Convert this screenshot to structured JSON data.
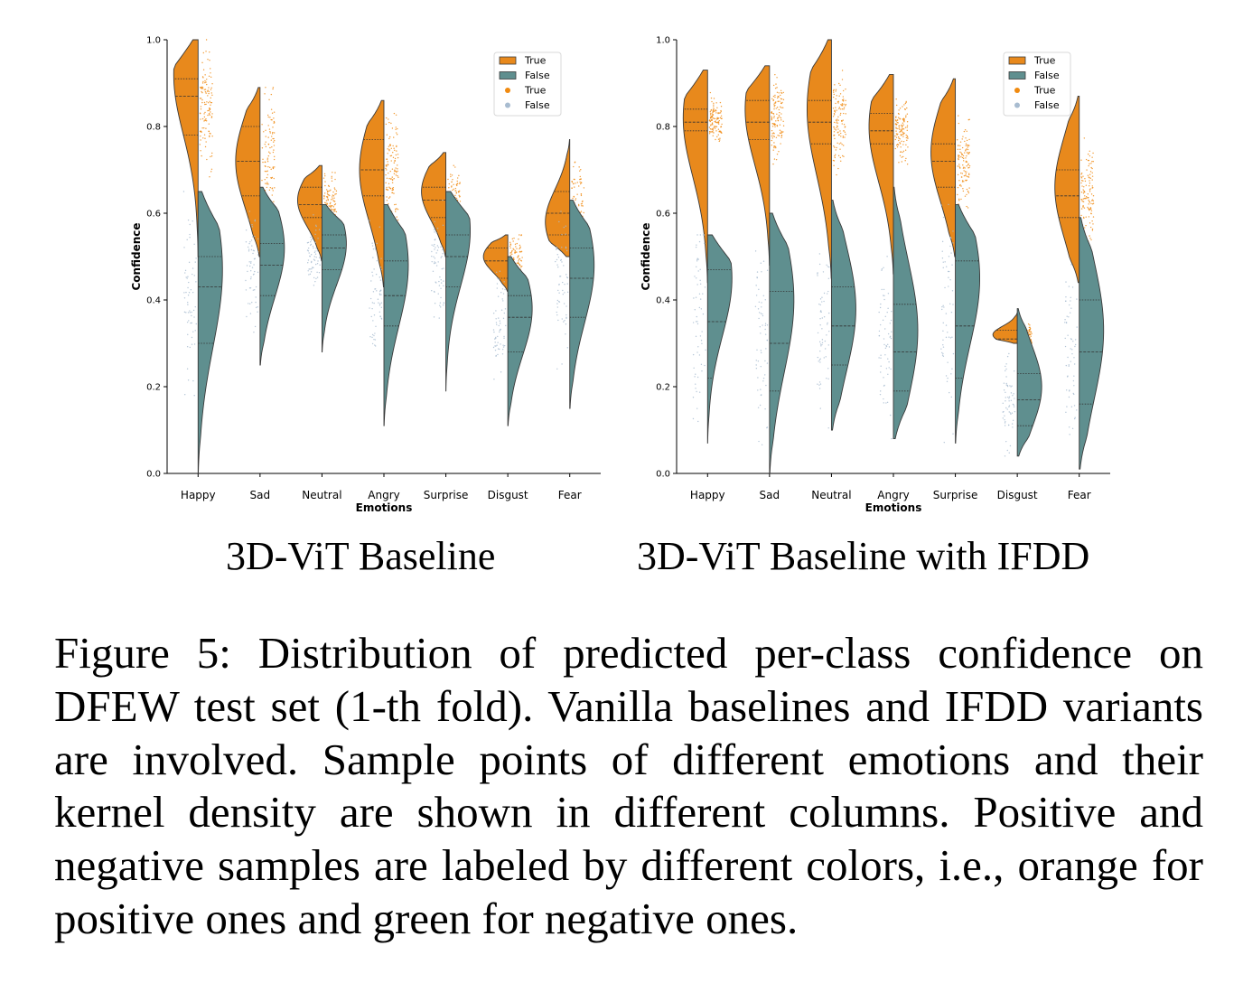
{
  "chart_data": [
    {
      "type": "violin",
      "ylabel": "Confidence",
      "xlabel": "Emotions",
      "ylim": [
        0,
        1
      ],
      "yticks": [
        "0.0",
        "0.2",
        "0.4",
        "0.6",
        "0.8",
        "1.0"
      ],
      "categories": [
        "Happy",
        "Sad",
        "Neutral",
        "Angry",
        "Surprise",
        "Disgust",
        "Fear"
      ],
      "legend": {
        "placement": "top-right",
        "entries": [
          "True",
          "False",
          "True",
          "False"
        ]
      },
      "series": [
        {
          "name": "True",
          "color": "#e8891c",
          "violins": [
            {
              "min": 0.5,
              "max": 1.0,
              "q1": 0.78,
              "median": 0.87,
              "q3": 0.91,
              "peak": 0.92
            },
            {
              "min": 0.5,
              "max": 0.89,
              "q1": 0.64,
              "median": 0.72,
              "q3": 0.8,
              "peak": 0.72
            },
            {
              "min": 0.49,
              "max": 0.71,
              "q1": 0.59,
              "median": 0.62,
              "q3": 0.66,
              "peak": 0.63
            },
            {
              "min": 0.43,
              "max": 0.86,
              "q1": 0.64,
              "median": 0.7,
              "q3": 0.77,
              "peak": 0.7
            },
            {
              "min": 0.5,
              "max": 0.74,
              "q1": 0.59,
              "median": 0.63,
              "q3": 0.66,
              "peak": 0.65
            },
            {
              "min": 0.42,
              "max": 0.55,
              "q1": 0.45,
              "median": 0.49,
              "q3": 0.52,
              "peak": 0.5
            },
            {
              "min": 0.5,
              "max": 0.77,
              "q1": 0.55,
              "median": 0.6,
              "q3": 0.65,
              "peak": 0.58
            }
          ]
        },
        {
          "name": "False",
          "color": "#5f8f8f",
          "violins": [
            {
              "min": 0.0,
              "max": 0.65,
              "q1": 0.3,
              "median": 0.43,
              "q3": 0.5,
              "peak": 0.47
            },
            {
              "min": 0.25,
              "max": 0.66,
              "q1": 0.41,
              "median": 0.48,
              "q3": 0.53,
              "peak": 0.52
            },
            {
              "min": 0.28,
              "max": 0.62,
              "q1": 0.47,
              "median": 0.52,
              "q3": 0.55,
              "peak": 0.53
            },
            {
              "min": 0.11,
              "max": 0.62,
              "q1": 0.34,
              "median": 0.41,
              "q3": 0.49,
              "peak": 0.48
            },
            {
              "min": 0.19,
              "max": 0.65,
              "q1": 0.43,
              "median": 0.5,
              "q3": 0.55,
              "peak": 0.56
            },
            {
              "min": 0.11,
              "max": 0.5,
              "q1": 0.28,
              "median": 0.36,
              "q3": 0.41,
              "peak": 0.38
            },
            {
              "min": 0.15,
              "max": 0.63,
              "q1": 0.36,
              "median": 0.45,
              "q3": 0.52,
              "peak": 0.48
            }
          ]
        }
      ]
    },
    {
      "type": "violin",
      "ylabel": "Confidence",
      "xlabel": "Emotions",
      "ylim": [
        0,
        1
      ],
      "yticks": [
        "0.0",
        "0.2",
        "0.4",
        "0.6",
        "0.8",
        "1.0"
      ],
      "categories": [
        "Happy",
        "Sad",
        "Neutral",
        "Angry",
        "Surprise",
        "Disgust",
        "Fear"
      ],
      "legend": {
        "placement": "top-right",
        "entries": [
          "True",
          "False",
          "True",
          "False"
        ]
      },
      "series": [
        {
          "name": "True",
          "color": "#e8891c",
          "violins": [
            {
              "min": 0.44,
              "max": 0.93,
              "q1": 0.79,
              "median": 0.81,
              "q3": 0.84,
              "peak": 0.82
            },
            {
              "min": 0.48,
              "max": 0.94,
              "q1": 0.77,
              "median": 0.81,
              "q3": 0.86,
              "peak": 0.84
            },
            {
              "min": 0.45,
              "max": 1.0,
              "q1": 0.76,
              "median": 0.81,
              "q3": 0.86,
              "peak": 0.84
            },
            {
              "min": 0.46,
              "max": 0.92,
              "q1": 0.76,
              "median": 0.79,
              "q3": 0.83,
              "peak": 0.8
            },
            {
              "min": 0.5,
              "max": 0.91,
              "q1": 0.66,
              "median": 0.72,
              "q3": 0.76,
              "peak": 0.74
            },
            {
              "min": 0.3,
              "max": 0.37,
              "q1": 0.3,
              "median": 0.31,
              "q3": 0.33,
              "peak": 0.32
            },
            {
              "min": 0.44,
              "max": 0.87,
              "q1": 0.59,
              "median": 0.64,
              "q3": 0.7,
              "peak": 0.66
            }
          ]
        },
        {
          "name": "False",
          "color": "#5f8f8f",
          "violins": [
            {
              "min": 0.07,
              "max": 0.55,
              "q1": 0.22,
              "median": 0.35,
              "q3": 0.47,
              "peak": 0.45
            },
            {
              "min": 0.0,
              "max": 0.6,
              "q1": 0.19,
              "median": 0.3,
              "q3": 0.42,
              "peak": 0.4
            },
            {
              "min": 0.1,
              "max": 0.63,
              "q1": 0.25,
              "median": 0.34,
              "q3": 0.43,
              "peak": 0.38
            },
            {
              "min": 0.08,
              "max": 0.66,
              "q1": 0.19,
              "median": 0.28,
              "q3": 0.39,
              "peak": 0.33
            },
            {
              "min": 0.07,
              "max": 0.62,
              "q1": 0.22,
              "median": 0.34,
              "q3": 0.49,
              "peak": 0.45
            },
            {
              "min": 0.04,
              "max": 0.38,
              "q1": 0.11,
              "median": 0.17,
              "q3": 0.23,
              "peak": 0.2
            },
            {
              "min": 0.01,
              "max": 0.59,
              "q1": 0.16,
              "median": 0.28,
              "q3": 0.4,
              "peak": 0.33
            }
          ]
        }
      ]
    }
  ],
  "subtitles": {
    "left": "3D-ViT Baseline",
    "right": "3D-ViT Baseline with IFDD"
  },
  "caption": "Figure 5: Distribution of predicted per-class confidence on DFEW test set (1-th fold). Vanilla baselines and IFDD variants are involved. Sample points of different emotions and their kernel density are shown in different columns. Positive and negative samples are labeled by different colors, i.e., orange for positive ones and green for negative ones."
}
